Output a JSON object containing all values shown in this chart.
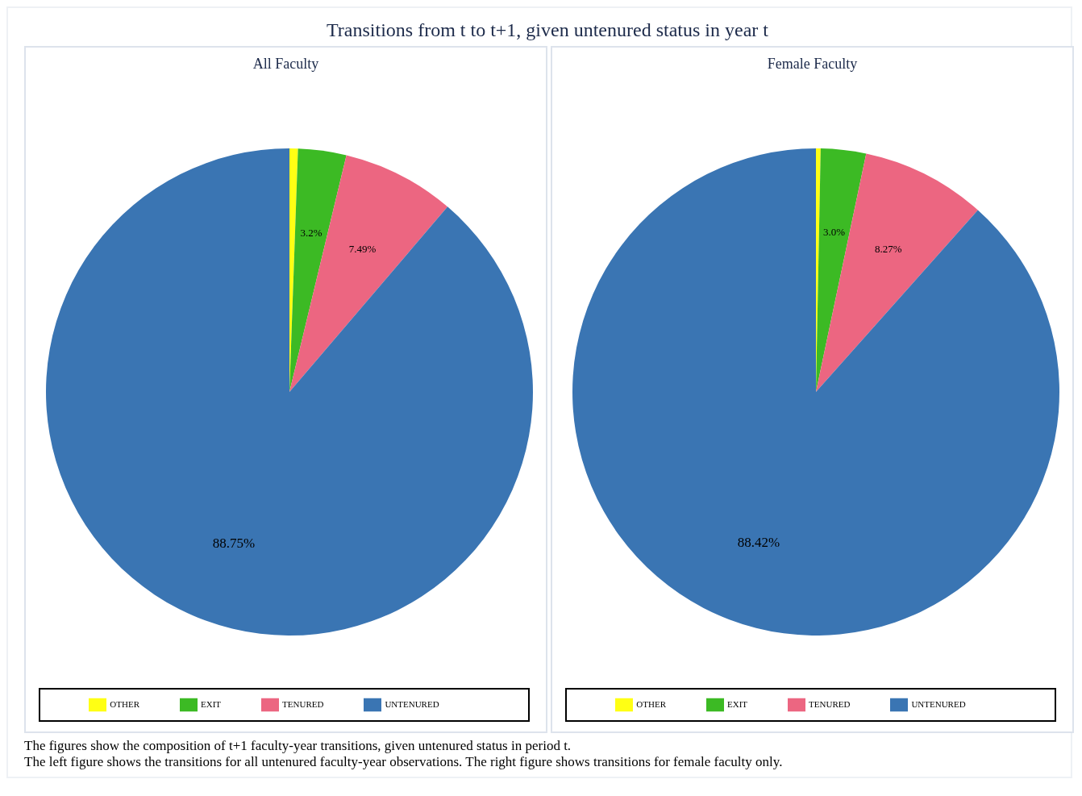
{
  "chart_data": [
    {
      "type": "pie",
      "title": "Transitions from t to t+1, given untenured status in year t",
      "subtitle": "All Faculty",
      "categories": [
        "OTHER",
        "EXIT",
        "TENURED",
        "UNTENURED"
      ],
      "values": [
        0.56,
        3.2,
        7.49,
        88.75
      ],
      "colors": [
        "#ffff14",
        "#3cba24",
        "#ec6681",
        "#3a75b3"
      ],
      "value_labels": [
        null,
        "3.2%",
        "7.49%",
        "88.75%"
      ],
      "legend": "bottom",
      "annotations": [
        "The figures show the composition of t+1 faculty-year transitions, given untenured status in period t.",
        "The left figure shows the transitions for all untenured faculty-year observations. The right figure shows transitions for female faculty only."
      ]
    },
    {
      "type": "pie",
      "subtitle": "Female Faculty",
      "categories": [
        "OTHER",
        "EXIT",
        "TENURED",
        "UNTENURED"
      ],
      "values": [
        0.31,
        3.0,
        8.27,
        88.42
      ],
      "colors": [
        "#ffff14",
        "#3cba24",
        "#ec6681",
        "#3a75b3"
      ],
      "value_labels": [
        null,
        "3.0%",
        "8.27%",
        "88.42%"
      ],
      "legend": "bottom"
    }
  ]
}
